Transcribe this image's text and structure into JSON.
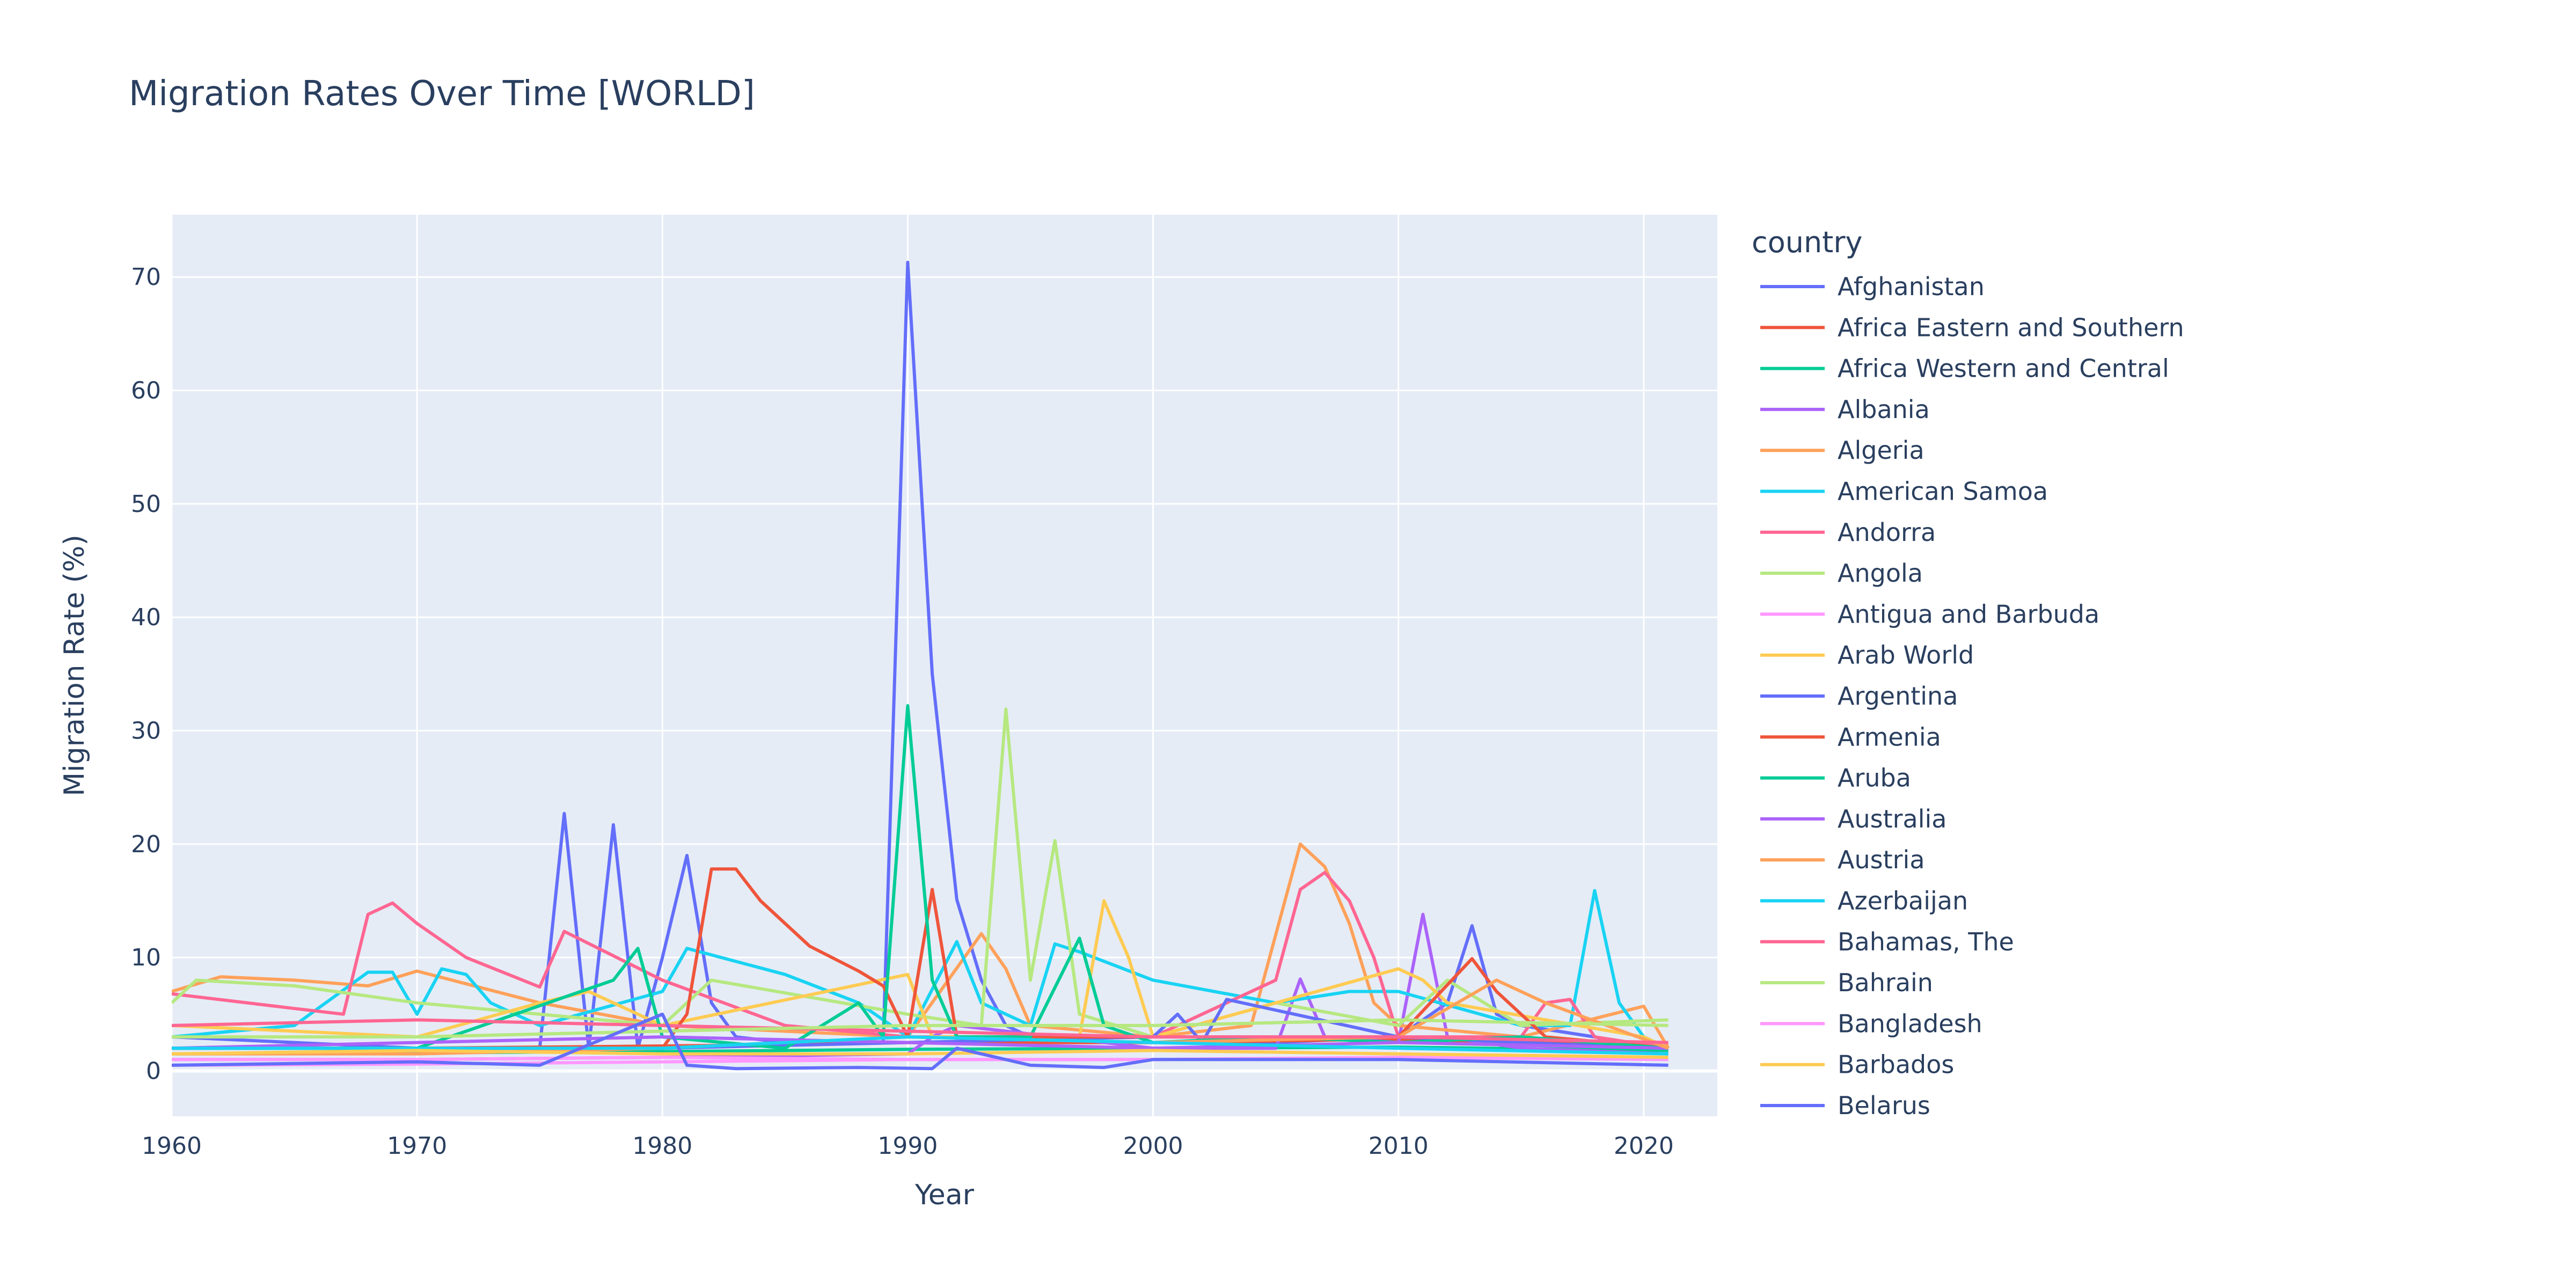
{
  "chart_data": {
    "type": "line",
    "title": "Migration Rates Over Time [WORLD]",
    "xlabel": "Year",
    "ylabel": "Migration Rate (%)",
    "xlim": [
      1960,
      2023
    ],
    "ylim": [
      -4,
      75.5
    ],
    "xticks": [
      1960,
      1970,
      1980,
      1990,
      2000,
      2010,
      2020
    ],
    "yticks": [
      0,
      10,
      20,
      30,
      40,
      50,
      60,
      70
    ],
    "grid": true,
    "legend_title": "country",
    "legend_position": "right",
    "series": [
      {
        "name": "Afghanistan",
        "color": "#636efa",
        "x": [
          1960,
          1965,
          1970,
          1975,
          1976,
          1977,
          1978,
          1979,
          1980,
          1981,
          1982,
          1983,
          1985,
          1988,
          1989,
          1990,
          1991,
          1992,
          1993,
          1994,
          1995,
          1996,
          1998,
          2000,
          2005,
          2010,
          2012,
          2013,
          2014,
          2015,
          2018,
          2020,
          2021
        ],
        "y": [
          3.0,
          2.5,
          2.0,
          2.0,
          22.7,
          2.0,
          21.7,
          2.0,
          10.0,
          19.0,
          6.0,
          3.0,
          2.5,
          2.5,
          2.5,
          71.3,
          35.0,
          15.1,
          8.0,
          4.0,
          3.0,
          2.5,
          2.5,
          2.5,
          2.5,
          3.0,
          6.0,
          12.8,
          5.0,
          4.0,
          3.0,
          2.0,
          2.0
        ]
      },
      {
        "name": "Africa Eastern and Southern",
        "color": "#ef553b",
        "x": [
          1960,
          1970,
          1980,
          1985,
          1990,
          2000,
          2010,
          2021
        ],
        "y": [
          2.0,
          2.0,
          2.2,
          2.3,
          2.5,
          2.5,
          2.8,
          2.2
        ]
      },
      {
        "name": "Africa Western and Central",
        "color": "#00cc96",
        "x": [
          1960,
          1970,
          1980,
          1990,
          2000,
          2010,
          2021
        ],
        "y": [
          1.5,
          1.6,
          1.7,
          1.9,
          2.0,
          2.1,
          1.8
        ]
      },
      {
        "name": "Albania",
        "color": "#ab63fa",
        "x": [
          1960,
          1970,
          1980,
          1990,
          1991,
          1992,
          2000,
          2005,
          2006,
          2007,
          2010,
          2011,
          2012,
          2015,
          2021
        ],
        "y": [
          1.0,
          1.0,
          1.2,
          1.5,
          3.0,
          4.0,
          2.0,
          2.0,
          8.1,
          3.0,
          2.5,
          13.8,
          3.0,
          2.0,
          1.5
        ]
      },
      {
        "name": "Algeria",
        "color": "#ffa15a",
        "x": [
          1960,
          1962,
          1965,
          1968,
          1970,
          1975,
          1980,
          1990,
          1993,
          1994,
          1995,
          2000,
          2004,
          2005,
          2006,
          2007,
          2008,
          2009,
          2010,
          2015,
          2020,
          2021
        ],
        "y": [
          7.0,
          8.3,
          8.0,
          7.5,
          8.8,
          6.0,
          4.0,
          3.0,
          12.1,
          9.0,
          4.0,
          3.0,
          4.0,
          12.0,
          20.0,
          18.0,
          13.0,
          6.0,
          4.0,
          3.0,
          5.7,
          2.0
        ]
      },
      {
        "name": "American Samoa",
        "color": "#19d3f3",
        "x": [
          1960,
          1965,
          1968,
          1969,
          1970,
          1971,
          1972,
          1973,
          1975,
          1980,
          1981,
          1985,
          1988,
          1990,
          1992,
          1993,
          1995,
          1996,
          1997,
          2000,
          2005,
          2008,
          2010,
          2015,
          2017,
          2018,
          2019,
          2020,
          2021
        ],
        "y": [
          3.0,
          4.0,
          8.7,
          8.7,
          5.0,
          9.0,
          8.5,
          6.0,
          4.0,
          7.0,
          10.8,
          8.5,
          6.0,
          3.0,
          11.4,
          6.0,
          4.0,
          11.2,
          10.5,
          8.0,
          6.0,
          7.0,
          7.0,
          4.0,
          4.0,
          15.9,
          6.0,
          3.0,
          2.0
        ]
      },
      {
        "name": "Andorra",
        "color": "#ff6692",
        "x": [
          1960,
          1965,
          1967,
          1968,
          1969,
          1970,
          1972,
          1975,
          1976,
          1980,
          1985,
          1990,
          2000,
          2005,
          2006,
          2007,
          2008,
          2009,
          2010,
          2015,
          2016,
          2017,
          2018,
          2021
        ],
        "y": [
          6.8,
          5.5,
          5.0,
          13.8,
          14.8,
          13.0,
          10.0,
          7.4,
          12.3,
          8.0,
          4.0,
          3.0,
          3.0,
          8.0,
          16.0,
          17.5,
          15.0,
          10.0,
          3.0,
          3.0,
          6.0,
          6.3,
          3.0,
          2.0
        ]
      },
      {
        "name": "Angola",
        "color": "#b6e880",
        "x": [
          1960,
          1961,
          1965,
          1970,
          1980,
          1982,
          1990,
          1993,
          1994,
          1995,
          1996,
          1997,
          2000,
          2005,
          2010,
          2012,
          2015,
          2021
        ],
        "y": [
          6.0,
          8.0,
          7.5,
          6.0,
          4.0,
          8.0,
          5.0,
          4.0,
          31.9,
          8.0,
          20.3,
          5.0,
          3.0,
          6.0,
          4.0,
          8.0,
          4.0,
          4.5
        ]
      },
      {
        "name": "Antigua and Barbuda",
        "color": "#ff97ff",
        "x": [
          1960,
          1970,
          1980,
          1990,
          2000,
          2010,
          2021
        ],
        "y": [
          1.0,
          1.0,
          1.2,
          1.0,
          1.0,
          1.2,
          1.0
        ]
      },
      {
        "name": "Arab World",
        "color": "#fecb52",
        "x": [
          1960,
          1970,
          1975,
          1977,
          1980,
          1990,
          1991,
          1997,
          1998,
          1999,
          2000,
          2010,
          2011,
          2012,
          2020,
          2021
        ],
        "y": [
          4.0,
          3.0,
          6.0,
          7.0,
          4.0,
          8.5,
          3.0,
          3.0,
          15.0,
          10.0,
          3.0,
          9.0,
          8.0,
          6.0,
          3.0,
          2.0
        ]
      },
      {
        "name": "Argentina",
        "color": "#636efa",
        "x": [
          1960,
          1970,
          1980,
          1990,
          2000,
          2001,
          2002,
          2003,
          2010,
          2015,
          2021
        ],
        "y": [
          2.0,
          2.0,
          2.0,
          2.5,
          3.0,
          5.0,
          2.5,
          6.3,
          3.0,
          2.5,
          2.0
        ]
      },
      {
        "name": "Armenia",
        "color": "#ef553b",
        "x": [
          1960,
          1970,
          1980,
          1981,
          1982,
          1983,
          1984,
          1986,
          1988,
          1989,
          1990,
          1991,
          1992,
          1995,
          2000,
          2010,
          2013,
          2014,
          2016,
          2021
        ],
        "y": [
          2.0,
          2.0,
          2.0,
          5.0,
          17.8,
          17.8,
          15.0,
          11.0,
          8.8,
          7.5,
          3.0,
          16.0,
          3.0,
          3.0,
          3.0,
          3.0,
          9.9,
          7.0,
          3.0,
          2.0
        ]
      },
      {
        "name": "Aruba",
        "color": "#00cc96",
        "x": [
          1960,
          1970,
          1978,
          1979,
          1980,
          1985,
          1988,
          1989,
          1990,
          1991,
          1992,
          1995,
          1997,
          1998,
          2000,
          2005,
          2010,
          2015,
          2021
        ],
        "y": [
          2.0,
          2.0,
          8.0,
          10.8,
          3.0,
          2.0,
          6.0,
          3.0,
          32.2,
          8.0,
          3.0,
          3.0,
          11.7,
          4.0,
          2.5,
          3.0,
          2.5,
          3.0,
          2.0
        ]
      },
      {
        "name": "Australia",
        "color": "#ab63fa",
        "x": [
          1960,
          1970,
          1980,
          1990,
          2000,
          2010,
          2021
        ],
        "y": [
          2.0,
          2.5,
          3.0,
          2.5,
          2.0,
          2.5,
          2.0
        ]
      },
      {
        "name": "Austria",
        "color": "#ffa15a",
        "x": [
          1960,
          1970,
          1980,
          1990,
          2000,
          2010,
          2014,
          2016,
          2021
        ],
        "y": [
          1.5,
          1.5,
          2.0,
          3.0,
          2.5,
          3.0,
          8.0,
          6.0,
          2.0
        ]
      },
      {
        "name": "Azerbaijan",
        "color": "#19d3f3",
        "x": [
          1960,
          1970,
          1980,
          1990,
          2000,
          2010,
          2021
        ],
        "y": [
          2.0,
          2.0,
          2.0,
          3.0,
          2.5,
          2.0,
          1.5
        ]
      },
      {
        "name": "Bahamas, The",
        "color": "#ff6692",
        "x": [
          1960,
          1970,
          1980,
          1990,
          2000,
          2010,
          2021
        ],
        "y": [
          4.0,
          4.5,
          4.0,
          3.5,
          3.0,
          3.0,
          2.5
        ]
      },
      {
        "name": "Bahrain",
        "color": "#b6e880",
        "x": [
          1960,
          1970,
          1980,
          1990,
          2000,
          2010,
          2021
        ],
        "y": [
          3.0,
          3.0,
          3.5,
          4.0,
          4.0,
          4.5,
          4.0
        ]
      },
      {
        "name": "Bangladesh",
        "color": "#ff97ff",
        "x": [
          1960,
          1970,
          1980,
          1990,
          2000,
          2010,
          2021
        ],
        "y": [
          0.5,
          0.6,
          0.8,
          1.0,
          1.0,
          1.2,
          1.0
        ]
      },
      {
        "name": "Barbados",
        "color": "#fecb52",
        "x": [
          1960,
          1970,
          1980,
          1990,
          2000,
          2010,
          2021
        ],
        "y": [
          1.5,
          1.8,
          1.5,
          1.5,
          1.8,
          1.5,
          1.2
        ]
      },
      {
        "name": "Belarus",
        "color": "#636efa",
        "x": [
          1960,
          1970,
          1975,
          1980,
          1981,
          1983,
          1988,
          1991,
          1992,
          1995,
          1998,
          2000,
          2010,
          2021
        ],
        "y": [
          0.5,
          0.8,
          0.5,
          5.0,
          0.5,
          0.2,
          0.3,
          0.2,
          2.0,
          0.5,
          0.3,
          1.0,
          1.0,
          0.5
        ]
      }
    ]
  }
}
